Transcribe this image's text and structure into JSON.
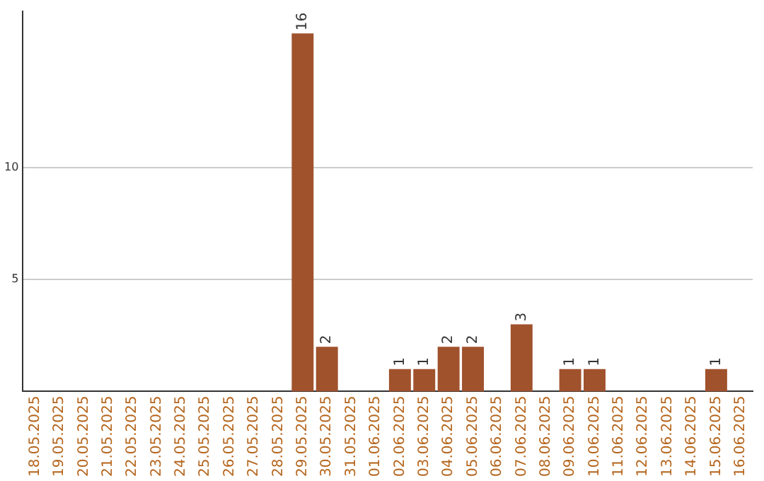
{
  "chart_data": {
    "type": "bar",
    "categories": [
      "18.05.2025",
      "19.05.2025",
      "20.05.2025",
      "21.05.2025",
      "22.05.2025",
      "23.05.2025",
      "24.05.2025",
      "25.05.2025",
      "26.05.2025",
      "27.05.2025",
      "28.05.2025",
      "29.05.2025",
      "30.05.2025",
      "31.05.2025",
      "01.06.2025",
      "02.06.2025",
      "03.06.2025",
      "04.06.2025",
      "05.06.2025",
      "06.06.2025",
      "07.06.2025",
      "08.06.2025",
      "09.06.2025",
      "10.06.2025",
      "11.06.2025",
      "12.06.2025",
      "13.06.2025",
      "14.06.2025",
      "15.06.2025",
      "16.06.2025"
    ],
    "values": [
      0,
      0,
      0,
      0,
      0,
      0,
      0,
      0,
      0,
      0,
      0,
      16,
      2,
      0,
      0,
      1,
      1,
      2,
      2,
      0,
      3,
      0,
      1,
      1,
      0,
      0,
      0,
      0,
      1,
      0
    ],
    "value_labels": [
      null,
      null,
      null,
      null,
      null,
      null,
      null,
      null,
      null,
      null,
      null,
      "16",
      "2",
      null,
      null,
      "1",
      "1",
      "2",
      "2",
      null,
      "3",
      null,
      "1",
      "1",
      null,
      null,
      null,
      null,
      "1",
      null
    ],
    "color": "#a0522d",
    "ylim": [
      0,
      17
    ],
    "yticks": [
      5,
      10
    ],
    "grid": "y",
    "legend": false
  }
}
